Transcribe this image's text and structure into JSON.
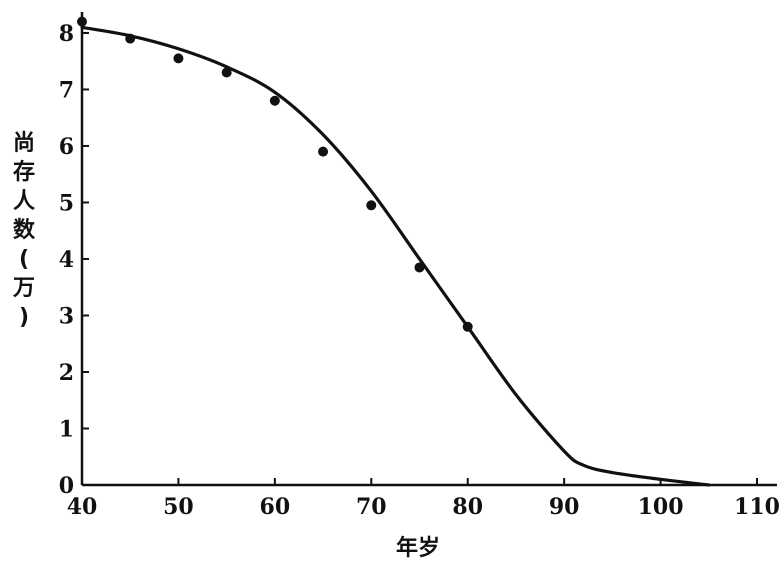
{
  "chart_data": {
    "type": "scatter",
    "title": "",
    "xlabel": "年岁",
    "ylabel": "尚存人数(万)",
    "xlim": [
      40,
      110
    ],
    "ylim": [
      0,
      8.3
    ],
    "x_ticks": [
      40,
      50,
      60,
      70,
      80,
      90,
      100,
      110
    ],
    "y_ticks": [
      0,
      1,
      2,
      3,
      4,
      5,
      6,
      7,
      8
    ],
    "grid": false,
    "legend": "none",
    "series": [
      {
        "kind": "points",
        "x": [
          40,
          45,
          50,
          55,
          60,
          65,
          70,
          75,
          80
        ],
        "y": [
          8.2,
          7.9,
          7.55,
          7.3,
          6.8,
          5.9,
          4.95,
          3.85,
          2.8
        ]
      },
      {
        "kind": "fitted-curve",
        "x": [
          40,
          45,
          50,
          55,
          60,
          65,
          70,
          75,
          80,
          85,
          90,
          92,
          95,
          100,
          105
        ],
        "y": [
          8.1,
          7.95,
          7.72,
          7.4,
          6.95,
          6.2,
          5.2,
          4.0,
          2.8,
          1.6,
          0.6,
          0.35,
          0.22,
          0.1,
          0.0
        ]
      }
    ]
  }
}
